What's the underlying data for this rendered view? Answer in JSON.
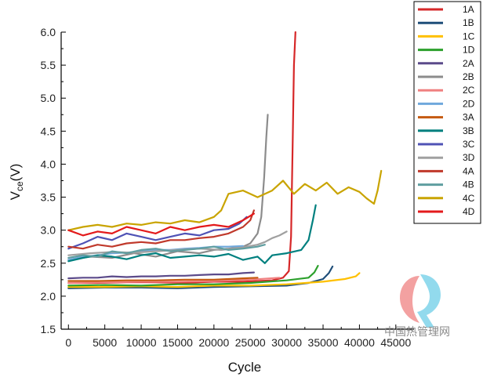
{
  "chart_data": {
    "type": "line",
    "xlabel": "Cycle",
    "ylabel_main": "V",
    "ylabel_sub": "ce",
    "ylabel_unit": "(V)",
    "xlim": [
      -1000,
      47500
    ],
    "ylim": [
      1.5,
      6.0
    ],
    "xticks": [
      0,
      5000,
      10000,
      15000,
      20000,
      25000,
      30000,
      35000,
      40000,
      45000
    ],
    "yticks": [
      1.5,
      2.0,
      2.5,
      3.0,
      3.5,
      4.0,
      4.5,
      5.0,
      5.5,
      6.0
    ],
    "legend_position": "top-right outside plot",
    "grid": false,
    "series": [
      {
        "name": "1A",
        "color": "#d62728",
        "x": [
          0,
          4000,
          8000,
          12000,
          16000,
          20000,
          24000,
          28000,
          29500,
          30300,
          30600,
          30800,
          31000,
          31200
        ],
        "y": [
          2.2,
          2.2,
          2.21,
          2.21,
          2.2,
          2.22,
          2.22,
          2.24,
          2.28,
          2.38,
          2.9,
          4.2,
          5.5,
          6.0
        ]
      },
      {
        "name": "1B",
        "color": "#1f4e79",
        "x": [
          0,
          5000,
          10000,
          15000,
          20000,
          25000,
          30000,
          33000,
          35000,
          35800,
          36300
        ],
        "y": [
          2.12,
          2.13,
          2.13,
          2.12,
          2.14,
          2.15,
          2.16,
          2.2,
          2.26,
          2.35,
          2.45
        ]
      },
      {
        "name": "1C",
        "color": "#ffc000",
        "x": [
          0,
          5000,
          10000,
          15000,
          20000,
          25000,
          30000,
          35000,
          38000,
          39500,
          40000
        ],
        "y": [
          2.14,
          2.14,
          2.15,
          2.14,
          2.16,
          2.16,
          2.18,
          2.22,
          2.26,
          2.3,
          2.35
        ]
      },
      {
        "name": "1D",
        "color": "#2ca02c",
        "x": [
          0,
          5000,
          10000,
          15000,
          20000,
          25000,
          30000,
          33000,
          33800,
          34300
        ],
        "y": [
          2.16,
          2.17,
          2.16,
          2.18,
          2.18,
          2.2,
          2.24,
          2.28,
          2.36,
          2.46
        ]
      },
      {
        "name": "2A",
        "color": "#5b4a8a",
        "x": [
          0,
          2000,
          4000,
          6000,
          8000,
          10000,
          12000,
          14000,
          16000,
          18000,
          20000,
          22000,
          24000,
          25500
        ],
        "y": [
          2.27,
          2.28,
          2.28,
          2.3,
          2.29,
          2.3,
          2.3,
          2.31,
          2.31,
          2.32,
          2.33,
          2.33,
          2.35,
          2.36
        ]
      },
      {
        "name": "2B",
        "color": "#8c8c8c",
        "x": [
          0,
          3000,
          6000,
          9000,
          12000,
          15000,
          18000,
          20000,
          22000,
          24000,
          25000,
          26000,
          26500,
          26900,
          27200,
          27400
        ],
        "y": [
          2.55,
          2.6,
          2.58,
          2.65,
          2.6,
          2.68,
          2.65,
          2.7,
          2.72,
          2.75,
          2.8,
          2.95,
          3.2,
          3.8,
          4.4,
          4.75
        ]
      },
      {
        "name": "2C",
        "color": "#f08080",
        "x": [
          0,
          5000,
          10000,
          15000,
          20000,
          25000,
          29000
        ],
        "y": [
          2.2,
          2.21,
          2.22,
          2.22,
          2.23,
          2.25,
          2.28
        ]
      },
      {
        "name": "2D",
        "color": "#6fa8dc",
        "x": [
          0,
          2000,
          4000,
          6000,
          8000,
          10000,
          12000,
          14000,
          16000,
          18000,
          20000,
          22000,
          24000
        ],
        "y": [
          2.55,
          2.6,
          2.62,
          2.65,
          2.66,
          2.68,
          2.7,
          2.7,
          2.72,
          2.73,
          2.75,
          2.75,
          2.76
        ]
      },
      {
        "name": "3A",
        "color": "#c55a11",
        "x": [
          0,
          4000,
          8000,
          12000,
          16000,
          20000,
          24000,
          26000
        ],
        "y": [
          2.23,
          2.23,
          2.24,
          2.24,
          2.25,
          2.25,
          2.27,
          2.28
        ]
      },
      {
        "name": "3B",
        "color": "#00807f",
        "x": [
          0,
          2000,
          4000,
          6000,
          8000,
          10000,
          12000,
          14000,
          16000,
          18000,
          20000,
          22000,
          24000,
          26000,
          27000,
          28000,
          30000,
          32000,
          33000,
          33600,
          34000
        ],
        "y": [
          2.53,
          2.58,
          2.62,
          2.6,
          2.56,
          2.62,
          2.65,
          2.58,
          2.6,
          2.62,
          2.6,
          2.64,
          2.55,
          2.6,
          2.5,
          2.62,
          2.65,
          2.7,
          2.85,
          3.15,
          3.38
        ]
      },
      {
        "name": "3C",
        "color": "#4f52b5",
        "x": [
          0,
          2000,
          4000,
          6000,
          8000,
          10000,
          12000,
          14000,
          16000,
          18000,
          20000,
          22000,
          23500,
          24500
        ],
        "y": [
          2.72,
          2.8,
          2.9,
          2.85,
          2.95,
          2.9,
          2.85,
          2.9,
          2.95,
          2.92,
          3.0,
          3.02,
          3.1,
          3.2
        ]
      },
      {
        "name": "3D",
        "color": "#a0a0a0",
        "x": [
          0,
          3000,
          6000,
          9000,
          12000,
          15000,
          18000,
          21000,
          24000,
          26000,
          27000,
          28000,
          29000,
          30000
        ],
        "y": [
          2.62,
          2.65,
          2.67,
          2.66,
          2.68,
          2.7,
          2.72,
          2.7,
          2.74,
          2.78,
          2.82,
          2.88,
          2.92,
          2.98
        ]
      },
      {
        "name": "4A",
        "color": "#c0392b",
        "x": [
          0,
          2000,
          4000,
          6000,
          8000,
          10000,
          12000,
          14000,
          16000,
          18000,
          20000,
          22000,
          24000,
          25000,
          25500
        ],
        "y": [
          2.75,
          2.72,
          2.78,
          2.75,
          2.8,
          2.82,
          2.8,
          2.85,
          2.85,
          2.88,
          2.9,
          2.95,
          3.05,
          3.15,
          3.3
        ]
      },
      {
        "name": "4B",
        "color": "#5f9ea0",
        "x": [
          0,
          2000,
          4000,
          6000,
          8000,
          10000,
          12000,
          14000,
          16000,
          18000,
          20000,
          22000,
          24000,
          26000,
          27000
        ],
        "y": [
          2.58,
          2.62,
          2.6,
          2.68,
          2.65,
          2.7,
          2.72,
          2.68,
          2.7,
          2.72,
          2.75,
          2.7,
          2.72,
          2.75,
          2.78
        ]
      },
      {
        "name": "4C",
        "color": "#c9a400",
        "x": [
          0,
          2000,
          4000,
          6000,
          8000,
          10000,
          12000,
          14000,
          16000,
          18000,
          20000,
          21000,
          22000,
          24000,
          26000,
          28000,
          29500,
          31000,
          32500,
          34000,
          35500,
          37000,
          38500,
          40000,
          41000,
          42000,
          42500,
          43000
        ],
        "y": [
          3.0,
          3.05,
          3.08,
          3.05,
          3.1,
          3.08,
          3.12,
          3.1,
          3.15,
          3.12,
          3.2,
          3.3,
          3.55,
          3.6,
          3.5,
          3.6,
          3.75,
          3.55,
          3.7,
          3.6,
          3.72,
          3.55,
          3.65,
          3.58,
          3.48,
          3.4,
          3.6,
          3.9
        ]
      },
      {
        "name": "4D",
        "color": "#e31a1c",
        "x": [
          0,
          2000,
          4000,
          6000,
          8000,
          10000,
          12000,
          14000,
          16000,
          18000,
          20000,
          22000,
          24000,
          25500
        ],
        "y": [
          3.0,
          2.92,
          2.98,
          2.95,
          3.05,
          3.0,
          2.95,
          3.05,
          3.0,
          3.05,
          3.08,
          3.05,
          3.15,
          3.25
        ]
      }
    ]
  },
  "watermark": {
    "text": "中国热管理网"
  }
}
